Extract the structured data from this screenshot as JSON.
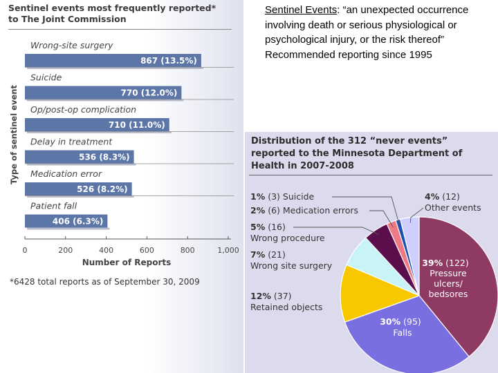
{
  "definition": {
    "term": "Sentinel Events",
    "text": ": “an unexpected occurrence involving death or serious physiological or psychological injury, or the risk thereof”",
    "note": "Recommended reporting since 1995"
  },
  "chart_data": [
    {
      "type": "bar",
      "orientation": "horizontal",
      "title": "Sentinel events most frequently reported*\nto The Joint Commission",
      "xlabel": "Number of Reports",
      "ylabel": "Type of sentinel event",
      "xlim": [
        0,
        1000
      ],
      "xticks": [
        "0",
        "200",
        "400",
        "600",
        "800",
        "1,000"
      ],
      "categories": [
        "Wrong-site surgery",
        "Suicide",
        "Op/post-op complication",
        "Delay in treatment",
        "Medication error",
        "Patient fall"
      ],
      "values": [
        867,
        770,
        710,
        536,
        526,
        406
      ],
      "data_labels": [
        "867 (13.5%)",
        "770 (12.0%)",
        "710 (11.0%)",
        "536 (8.3%)",
        "526 (8.2%)",
        "406 (6.3%)"
      ],
      "footnote": "*6428 total reports as of September 30, 2009",
      "bar_color": "#5d76a8"
    },
    {
      "type": "pie",
      "title": "Distribution of the 312 “never events”\nreported to the Minnesota Department of\nHealth in 2007-2008",
      "slices": [
        {
          "pct": "39%",
          "count": "(122)",
          "label": "Pressure ulcers/ bedsores",
          "value": 122,
          "color": "#8e3a62"
        },
        {
          "pct": "30%",
          "count": "(95)",
          "label": "Falls",
          "value": 95,
          "color": "#7a6fe0"
        },
        {
          "pct": "12%",
          "count": "(37)",
          "label": "Retained objects",
          "value": 37,
          "color": "#f7c800"
        },
        {
          "pct": "7%",
          "count": "(21)",
          "label": "Wrong site surgery",
          "value": 21,
          "color": "#c8f3f7"
        },
        {
          "pct": "5%",
          "count": "(16)",
          "label": "Wrong procedure",
          "value": 16,
          "color": "#5b0e4c"
        },
        {
          "pct": "2%",
          "count": "(6)",
          "label": "Medication errors",
          "value": 6,
          "color": "#f07a84"
        },
        {
          "pct": "1%",
          "count": "(3)",
          "label": "Suicide",
          "value": 3,
          "color": "#1f4fb0"
        },
        {
          "pct": "4%",
          "count": "(12)",
          "label": "Other events",
          "value": 12,
          "color": "#cfcfff"
        }
      ]
    }
  ]
}
